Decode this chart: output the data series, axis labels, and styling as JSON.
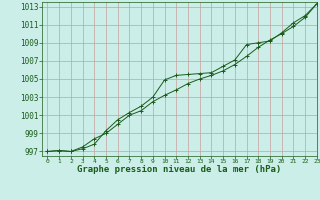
{
  "xlabel": "Graphe pression niveau de la mer (hPa)",
  "bg_color": "#cceee8",
  "grid_color": "#c8a0a0",
  "line_color": "#1a5c1a",
  "marker_color": "#1a5c1a",
  "ylim": [
    996.5,
    1013.5
  ],
  "xlim": [
    -0.5,
    23
  ],
  "yticks": [
    997,
    999,
    1001,
    1003,
    1005,
    1007,
    1009,
    1011,
    1013
  ],
  "xticks": [
    0,
    1,
    2,
    3,
    4,
    5,
    6,
    7,
    8,
    9,
    10,
    11,
    12,
    13,
    14,
    15,
    16,
    17,
    18,
    19,
    20,
    21,
    22,
    23
  ],
  "series1": [
    997.0,
    997.1,
    997.0,
    997.3,
    997.8,
    999.3,
    1000.5,
    1001.3,
    1002.0,
    1003.0,
    1004.9,
    1005.4,
    1005.5,
    1005.6,
    1005.7,
    1006.4,
    1007.1,
    1008.8,
    1009.0,
    1009.2,
    1010.1,
    1011.2,
    1012.0,
    1013.3
  ],
  "series2": [
    997.0,
    997.1,
    997.0,
    997.5,
    998.4,
    999.0,
    1000.0,
    1001.0,
    1001.5,
    1002.5,
    1003.2,
    1003.8,
    1004.5,
    1005.0,
    1005.4,
    1005.9,
    1006.6,
    1007.5,
    1008.5,
    1009.3,
    1010.0,
    1010.8,
    1011.8,
    1013.3
  ],
  "xlabel_fontsize": 6.5,
  "ytick_fontsize": 5.5,
  "xtick_fontsize": 4.5
}
